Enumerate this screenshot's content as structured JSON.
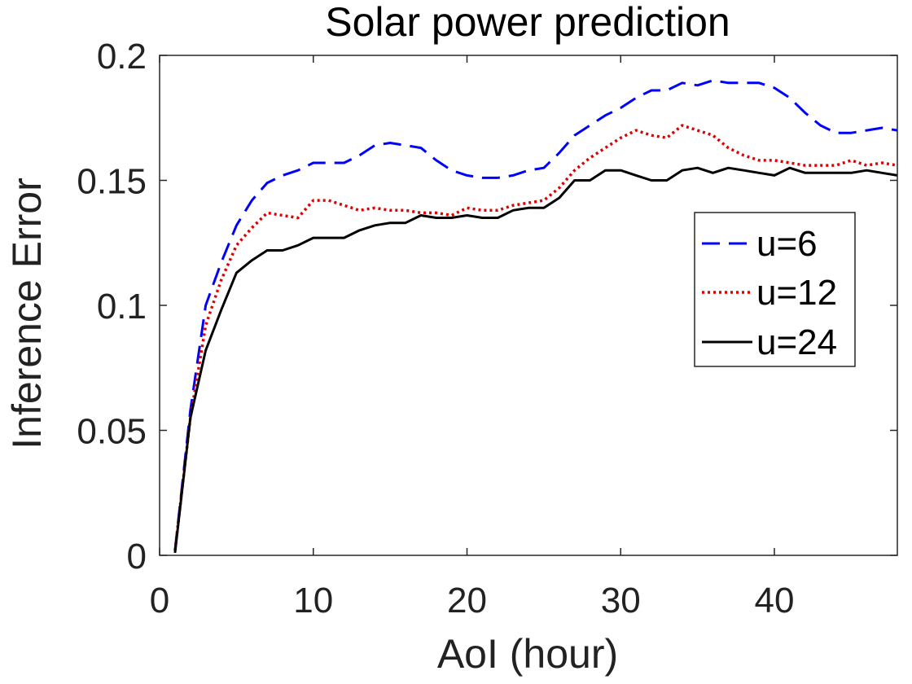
{
  "chart_data": {
    "type": "line",
    "title": "Solar power prediction",
    "xlabel": "AoI (hour)",
    "ylabel": "Inference Error",
    "xlim": [
      0,
      48
    ],
    "ylim": [
      0,
      0.2
    ],
    "xticks": [
      0,
      10,
      20,
      30,
      40
    ],
    "yticks": [
      0,
      0.05,
      0.1,
      0.15,
      0.2
    ],
    "xtick_labels": [
      "0",
      "10",
      "20",
      "30",
      "40"
    ],
    "ytick_labels": [
      "0",
      "0.05",
      "0.1",
      "0.15",
      "0.2"
    ],
    "grid": false,
    "legend_position": "right",
    "x": [
      1,
      2,
      3,
      4,
      5,
      6,
      7,
      8,
      9,
      10,
      11,
      12,
      13,
      14,
      15,
      16,
      17,
      18,
      19,
      20,
      21,
      22,
      23,
      24,
      25,
      26,
      27,
      28,
      29,
      30,
      31,
      32,
      33,
      34,
      35,
      36,
      37,
      38,
      39,
      40,
      41,
      42,
      43,
      44,
      45,
      46,
      47,
      48
    ],
    "series": [
      {
        "name": "u=6",
        "color": "#0000ff",
        "dash": "dashed",
        "values": [
          0.002,
          0.058,
          0.1,
          0.117,
          0.132,
          0.142,
          0.149,
          0.152,
          0.154,
          0.157,
          0.157,
          0.157,
          0.16,
          0.164,
          0.165,
          0.164,
          0.163,
          0.158,
          0.154,
          0.152,
          0.151,
          0.151,
          0.152,
          0.154,
          0.155,
          0.161,
          0.168,
          0.172,
          0.176,
          0.179,
          0.183,
          0.186,
          0.186,
          0.189,
          0.188,
          0.19,
          0.189,
          0.189,
          0.189,
          0.187,
          0.183,
          0.177,
          0.172,
          0.169,
          0.169,
          0.17,
          0.171,
          0.17
        ]
      },
      {
        "name": "u=12",
        "color": "#e00000",
        "dash": "dotted",
        "values": [
          0.002,
          0.055,
          0.092,
          0.11,
          0.124,
          0.131,
          0.137,
          0.136,
          0.135,
          0.142,
          0.142,
          0.14,
          0.138,
          0.139,
          0.138,
          0.138,
          0.137,
          0.137,
          0.136,
          0.139,
          0.138,
          0.138,
          0.14,
          0.141,
          0.142,
          0.147,
          0.154,
          0.159,
          0.163,
          0.167,
          0.17,
          0.168,
          0.167,
          0.172,
          0.17,
          0.168,
          0.163,
          0.16,
          0.158,
          0.158,
          0.157,
          0.156,
          0.156,
          0.156,
          0.158,
          0.156,
          0.157,
          0.156
        ]
      },
      {
        "name": "u=24",
        "color": "#000000",
        "dash": "solid",
        "values": [
          0.001,
          0.055,
          0.082,
          0.098,
          0.113,
          0.118,
          0.122,
          0.122,
          0.124,
          0.127,
          0.127,
          0.127,
          0.13,
          0.132,
          0.133,
          0.133,
          0.136,
          0.135,
          0.135,
          0.136,
          0.135,
          0.135,
          0.138,
          0.139,
          0.139,
          0.143,
          0.15,
          0.15,
          0.154,
          0.154,
          0.152,
          0.15,
          0.15,
          0.154,
          0.155,
          0.153,
          0.155,
          0.154,
          0.153,
          0.152,
          0.155,
          0.153,
          0.153,
          0.153,
          0.153,
          0.154,
          0.153,
          0.152
        ]
      }
    ]
  }
}
